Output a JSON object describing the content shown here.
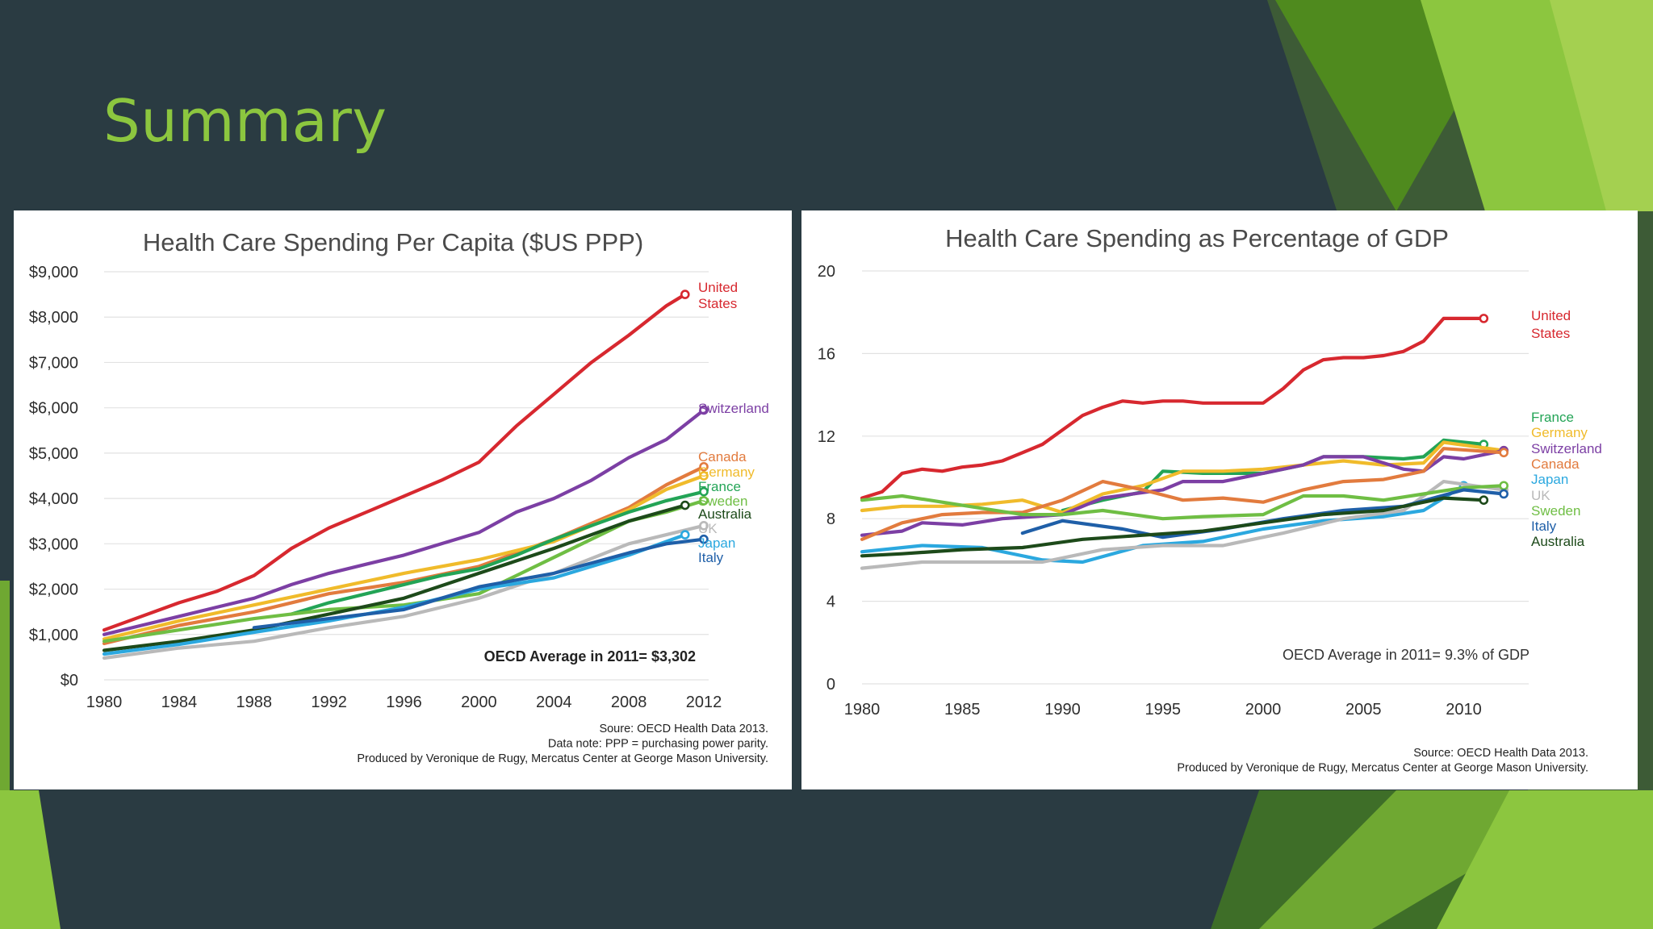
{
  "slide": {
    "title": "Summary"
  },
  "colors": {
    "background": "#2a3b42",
    "title": "#8cc63f",
    "accent_green_light": "#8cc63f",
    "accent_green_dark": "#4f8a1e"
  },
  "chart_data": [
    {
      "type": "line",
      "title": "Health Care Spending Per Capita ($US PPP)",
      "xlabel": "",
      "ylabel": "",
      "xlim": [
        1980,
        2012
      ],
      "ylim": [
        0,
        9000
      ],
      "xticks": [
        1980,
        1984,
        1988,
        1992,
        1996,
        2000,
        2004,
        2008,
        2012
      ],
      "yticks": [
        0,
        1000,
        2000,
        3000,
        4000,
        5000,
        6000,
        7000,
        8000,
        9000
      ],
      "ytick_labels": [
        "$0",
        "$1,000",
        "$2,000",
        "$3,000",
        "$4,000",
        "$5,000",
        "$6,000",
        "$7,000",
        "$8,000",
        "$9,000"
      ],
      "grid": true,
      "annotation": "OECD Average in 2011= $3,302",
      "source_lines": [
        "Soure: OECD Health Data 2013.",
        "Data note: PPP = purchasing power parity.",
        "Produced by Veronique de Rugy, Mercatus Center at George Mason University."
      ],
      "series": [
        {
          "name": "United States",
          "label_lines": [
            "United",
            "States"
          ],
          "color": "#d7282f",
          "x": [
            1980,
            1982,
            1984,
            1986,
            1988,
            1990,
            1992,
            1994,
            1996,
            1998,
            2000,
            2002,
            2004,
            2006,
            2008,
            2010,
            2011
          ],
          "y": [
            1100,
            1400,
            1700,
            1950,
            2300,
            2900,
            3350,
            3700,
            4050,
            4400,
            4800,
            5600,
            6300,
            7000,
            7600,
            8250,
            8500
          ]
        },
        {
          "name": "Switzerland",
          "label_lines": [
            "Switzerland"
          ],
          "color": "#7c3fa4",
          "x": [
            1980,
            1982,
            1984,
            1986,
            1988,
            1990,
            1992,
            1994,
            1996,
            1998,
            2000,
            2002,
            2004,
            2006,
            2008,
            2010,
            2012
          ],
          "y": [
            1000,
            1200,
            1400,
            1600,
            1800,
            2100,
            2350,
            2550,
            2750,
            3000,
            3250,
            3700,
            4000,
            4400,
            4900,
            5300,
            5950
          ]
        },
        {
          "name": "Canada",
          "label_lines": [
            "Canada"
          ],
          "color": "#e27b3e",
          "x": [
            1980,
            1984,
            1988,
            1992,
            1996,
            2000,
            2004,
            2008,
            2010,
            2012
          ],
          "y": [
            800,
            1200,
            1500,
            1900,
            2150,
            2500,
            3100,
            3800,
            4300,
            4700
          ]
        },
        {
          "name": "Germany",
          "label_lines": [
            "Germany"
          ],
          "color": "#f0bb2b",
          "x": [
            1980,
            1984,
            1988,
            1992,
            1996,
            2000,
            2004,
            2008,
            2010,
            2012
          ],
          "y": [
            900,
            1300,
            1650,
            2000,
            2350,
            2650,
            3050,
            3750,
            4200,
            4500
          ]
        },
        {
          "name": "France",
          "label_lines": [
            "France"
          ],
          "color": "#23a456",
          "x": [
            1990,
            1992,
            1994,
            1996,
            1998,
            2000,
            2002,
            2004,
            2006,
            2008,
            2010,
            2012
          ],
          "y": [
            1450,
            1700,
            1900,
            2100,
            2300,
            2450,
            2750,
            3100,
            3400,
            3700,
            3950,
            4150
          ]
        },
        {
          "name": "Sweden",
          "label_lines": [
            "Sweden"
          ],
          "color": "#6fbe44",
          "x": [
            1980,
            1984,
            1988,
            1992,
            1996,
            2000,
            2004,
            2008,
            2010,
            2012
          ],
          "y": [
            850,
            1100,
            1350,
            1550,
            1650,
            1900,
            2700,
            3500,
            3700,
            3950
          ]
        },
        {
          "name": "Australia",
          "label_lines": [
            "Australia"
          ],
          "color": "#1d4a1a",
          "x": [
            1980,
            1984,
            1988,
            1992,
            1996,
            2000,
            2004,
            2008,
            2011
          ],
          "y": [
            650,
            850,
            1100,
            1450,
            1800,
            2350,
            2900,
            3500,
            3850
          ]
        },
        {
          "name": "UK",
          "label_lines": [
            "UK"
          ],
          "color": "#b9b9b9",
          "x": [
            1980,
            1984,
            1988,
            1992,
            1996,
            2000,
            2004,
            2008,
            2012
          ],
          "y": [
            480,
            700,
            850,
            1150,
            1400,
            1800,
            2350,
            3000,
            3400
          ]
        },
        {
          "name": "Japan",
          "label_lines": [
            "Japan"
          ],
          "color": "#2ba8df",
          "x": [
            1980,
            1984,
            1988,
            1992,
            1996,
            2000,
            2004,
            2008,
            2011
          ],
          "y": [
            570,
            780,
            1050,
            1300,
            1600,
            2000,
            2250,
            2750,
            3200
          ]
        },
        {
          "name": "Italy",
          "label_lines": [
            "Italy"
          ],
          "color": "#1f5fa8",
          "x": [
            1988,
            1992,
            1996,
            2000,
            2004,
            2008,
            2010,
            2012
          ],
          "y": [
            1150,
            1350,
            1550,
            2050,
            2350,
            2800,
            3000,
            3100
          ]
        }
      ]
    },
    {
      "type": "line",
      "title": "Health Care Spending as Percentage of GDP",
      "xlabel": "",
      "ylabel": "",
      "xlim": [
        1980,
        2013
      ],
      "ylim": [
        0,
        20
      ],
      "xticks": [
        1980,
        1985,
        1990,
        1995,
        2000,
        2005,
        2010
      ],
      "yticks": [
        0,
        4,
        8,
        12,
        16,
        20
      ],
      "ytick_labels": [
        "0",
        "4",
        "8",
        "12",
        "16",
        "20"
      ],
      "grid": true,
      "annotation": "OECD Average in 2011= 9.3% of GDP",
      "source_lines": [
        "Source: OECD Health Data 2013.",
        "Produced by Veronique de Rugy, Mercatus Center at George Mason University."
      ],
      "series": [
        {
          "name": "United States",
          "label_lines": [
            "United",
            "States"
          ],
          "color": "#d7282f",
          "x": [
            1980,
            1981,
            1982,
            1983,
            1984,
            1985,
            1986,
            1987,
            1988,
            1989,
            1990,
            1991,
            1992,
            1993,
            1994,
            1995,
            1996,
            1997,
            1998,
            1999,
            2000,
            2001,
            2002,
            2003,
            2004,
            2005,
            2006,
            2007,
            2008,
            2009,
            2010,
            2011
          ],
          "y": [
            9.0,
            9.3,
            10.2,
            10.4,
            10.3,
            10.5,
            10.6,
            10.8,
            11.2,
            11.6,
            12.3,
            13.0,
            13.4,
            13.7,
            13.6,
            13.7,
            13.7,
            13.6,
            13.6,
            13.6,
            13.6,
            14.3,
            15.2,
            15.7,
            15.8,
            15.8,
            15.9,
            16.1,
            16.6,
            17.7,
            17.7,
            17.7
          ]
        },
        {
          "name": "France",
          "label_lines": [
            "France"
          ],
          "color": "#23a456",
          "x": [
            1990,
            1992,
            1994,
            1995,
            1997,
            2000,
            2002,
            2003,
            2005,
            2007,
            2008,
            2009,
            2011
          ],
          "y": [
            8.4,
            8.9,
            9.3,
            10.3,
            10.2,
            10.2,
            10.6,
            11.0,
            11.0,
            10.9,
            11.0,
            11.8,
            11.6
          ]
        },
        {
          "name": "Germany",
          "label_lines": [
            "Germany"
          ],
          "color": "#f0bb2b",
          "x": [
            1980,
            1982,
            1984,
            1986,
            1988,
            1990,
            1992,
            1994,
            1996,
            1998,
            2000,
            2002,
            2004,
            2006,
            2008,
            2009,
            2012
          ],
          "y": [
            8.4,
            8.6,
            8.6,
            8.7,
            8.9,
            8.3,
            9.2,
            9.6,
            10.3,
            10.3,
            10.4,
            10.6,
            10.8,
            10.6,
            10.7,
            11.7,
            11.3
          ]
        },
        {
          "name": "Switzerland",
          "label_lines": [
            "Switzerland"
          ],
          "color": "#7c3fa4",
          "x": [
            1980,
            1982,
            1983,
            1985,
            1987,
            1990,
            1992,
            1995,
            1996,
            1998,
            2000,
            2002,
            2003,
            2005,
            2007,
            2008,
            2009,
            2010,
            2012
          ],
          "y": [
            7.2,
            7.4,
            7.8,
            7.7,
            8.0,
            8.2,
            9.0,
            9.4,
            9.8,
            9.8,
            10.2,
            10.6,
            11.0,
            11.0,
            10.4,
            10.3,
            11.0,
            10.9,
            11.3
          ]
        },
        {
          "name": "Canada",
          "label_lines": [
            "Canada"
          ],
          "color": "#e27b3e",
          "x": [
            1980,
            1982,
            1984,
            1986,
            1988,
            1990,
            1992,
            1994,
            1996,
            1998,
            2000,
            2002,
            2004,
            2006,
            2008,
            2009,
            2012
          ],
          "y": [
            7.0,
            7.8,
            8.2,
            8.3,
            8.3,
            8.9,
            9.8,
            9.4,
            8.9,
            9.0,
            8.8,
            9.4,
            9.8,
            9.9,
            10.3,
            11.4,
            11.2
          ]
        },
        {
          "name": "Japan",
          "label_lines": [
            "Japan"
          ],
          "color": "#2ba8df",
          "x": [
            1980,
            1983,
            1986,
            1989,
            1991,
            1994,
            1997,
            2000,
            2003,
            2006,
            2008,
            2010
          ],
          "y": [
            6.4,
            6.7,
            6.6,
            6.0,
            5.9,
            6.7,
            6.9,
            7.5,
            7.9,
            8.1,
            8.4,
            9.6
          ]
        },
        {
          "name": "UK",
          "label_lines": [
            "UK"
          ],
          "color": "#b9b9b9",
          "x": [
            1980,
            1983,
            1986,
            1989,
            1992,
            1995,
            1998,
            2001,
            2004,
            2007,
            2009,
            2012
          ],
          "y": [
            5.6,
            5.9,
            5.9,
            5.9,
            6.5,
            6.7,
            6.7,
            7.3,
            8.0,
            8.4,
            9.8,
            9.4
          ]
        },
        {
          "name": "Sweden",
          "label_lines": [
            "Sweden"
          ],
          "color": "#6fbe44",
          "x": [
            1980,
            1982,
            1984,
            1986,
            1988,
            1990,
            1992,
            1995,
            1997,
            2000,
            2002,
            2004,
            2006,
            2008,
            2010,
            2012
          ],
          "y": [
            8.9,
            9.1,
            8.8,
            8.5,
            8.2,
            8.2,
            8.4,
            8.0,
            8.1,
            8.2,
            9.1,
            9.1,
            8.9,
            9.2,
            9.5,
            9.6
          ]
        },
        {
          "name": "Italy",
          "label_lines": [
            "Italy"
          ],
          "color": "#1f5fa8",
          "x": [
            1988,
            1990,
            1993,
            1995,
            1998,
            2001,
            2004,
            2007,
            2010,
            2012
          ],
          "y": [
            7.3,
            7.9,
            7.5,
            7.1,
            7.5,
            8.0,
            8.4,
            8.6,
            9.4,
            9.2
          ]
        },
        {
          "name": "Australia",
          "label_lines": [
            "Australia"
          ],
          "color": "#1d4a1a",
          "x": [
            1980,
            1982,
            1985,
            1988,
            1991,
            1994,
            1997,
            2000,
            2003,
            2006,
            2009,
            2011
          ],
          "y": [
            6.2,
            6.3,
            6.5,
            6.6,
            7.0,
            7.2,
            7.4,
            7.8,
            8.2,
            8.4,
            9.0,
            8.9
          ]
        }
      ]
    }
  ]
}
